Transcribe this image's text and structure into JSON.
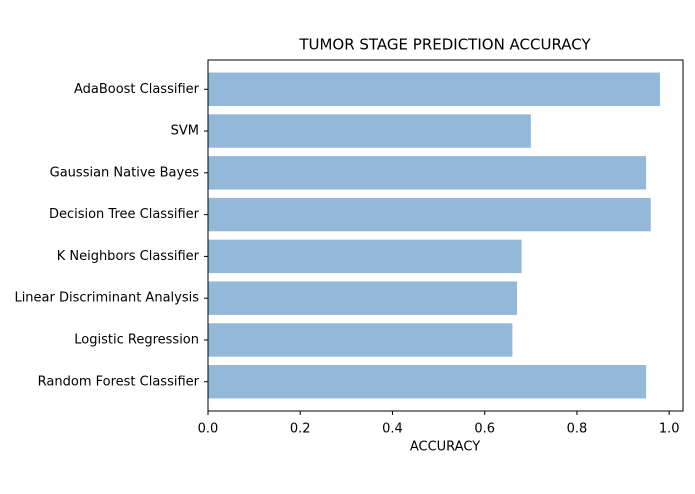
{
  "chart_data": {
    "type": "barh",
    "title": "TUMOR STAGE PREDICTION ACCURACY",
    "x_label": "ACCURACY",
    "categories": [
      "AdaBoost Classifier",
      "SVM",
      "Gaussian Native Bayes",
      "Decision Tree Classifier",
      "K Neighbors Classifier",
      "Linear Discriminant Analysis",
      "Logistic Regression",
      "Random Forest Classifier"
    ],
    "values": [
      0.98,
      0.7,
      0.95,
      0.96,
      0.68,
      0.67,
      0.66,
      0.95
    ],
    "color": "#94b8d7",
    "xlim": [
      0,
      1.03
    ],
    "xticks": [
      {
        "value": 0,
        "label": "0.0"
      },
      0.2,
      0.4,
      0.6,
      0.8,
      {
        "value": 1,
        "label": "1.0"
      }
    ]
  }
}
